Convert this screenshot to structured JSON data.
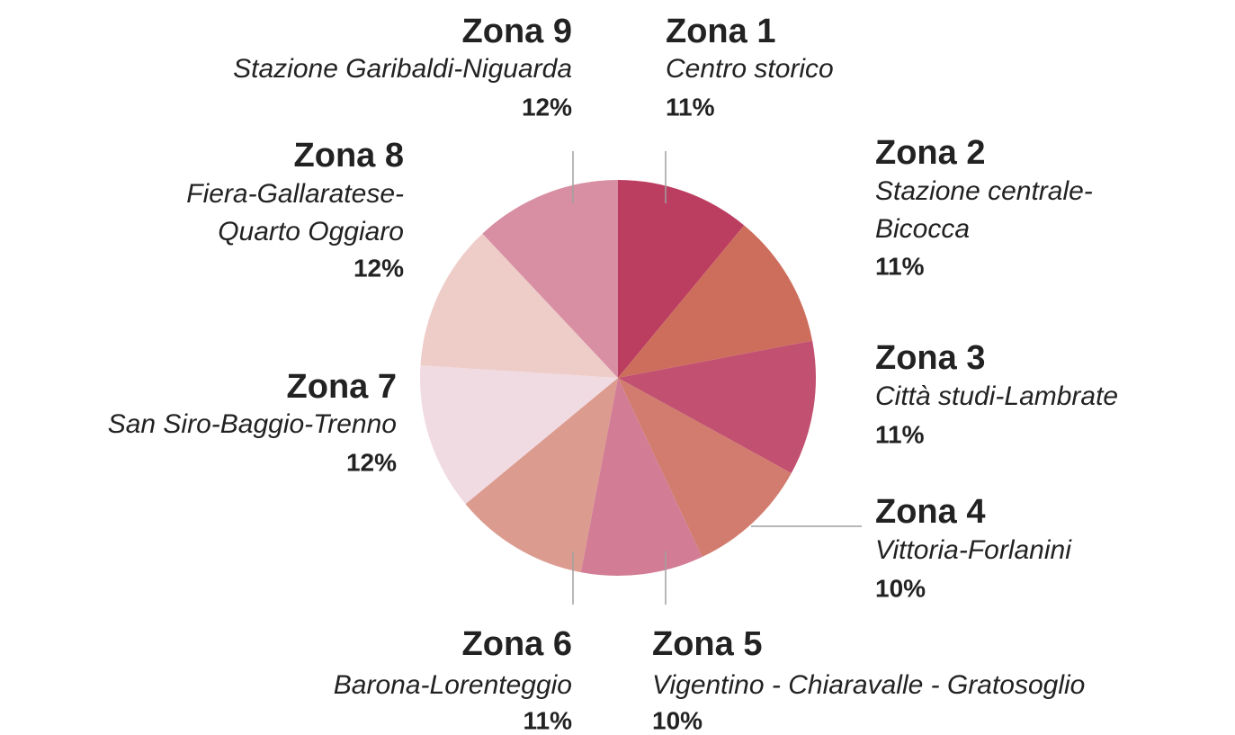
{
  "chart_data": {
    "type": "pie",
    "categories": [
      "Zona 1",
      "Zona 2",
      "Zona 3",
      "Zona 4",
      "Zona 5",
      "Zona 6",
      "Zona 7",
      "Zona 8",
      "Zona 9"
    ],
    "descriptions": [
      [
        "Centro storico"
      ],
      [
        "Stazione centrale-",
        "Bicocca"
      ],
      [
        "Città studi-Lambrate"
      ],
      [
        "Vittoria-Forlanini"
      ],
      [
        "Vigentino - Chiaravalle - Gratosoglio"
      ],
      [
        "Barona-Lorenteggio"
      ],
      [
        "San Siro-Baggio-Trenno"
      ],
      [
        "Fiera-Gallaratese-",
        "Quarto Oggiaro"
      ],
      [
        "Stazione Garibaldi-Niguarda"
      ]
    ],
    "values": [
      11,
      11,
      11,
      10,
      10,
      11,
      12,
      12,
      12
    ],
    "value_labels": [
      "11%",
      "11%",
      "11%",
      "10%",
      "10%",
      "11%",
      "12%",
      "12%",
      "12%"
    ],
    "colors": [
      "#bb3d60",
      "#cd6e5d",
      "#c25070",
      "#d17c6e",
      "#d27d95",
      "#dc9b8f",
      "#f1dbe2",
      "#eeccc8",
      "#d88fa3"
    ]
  }
}
